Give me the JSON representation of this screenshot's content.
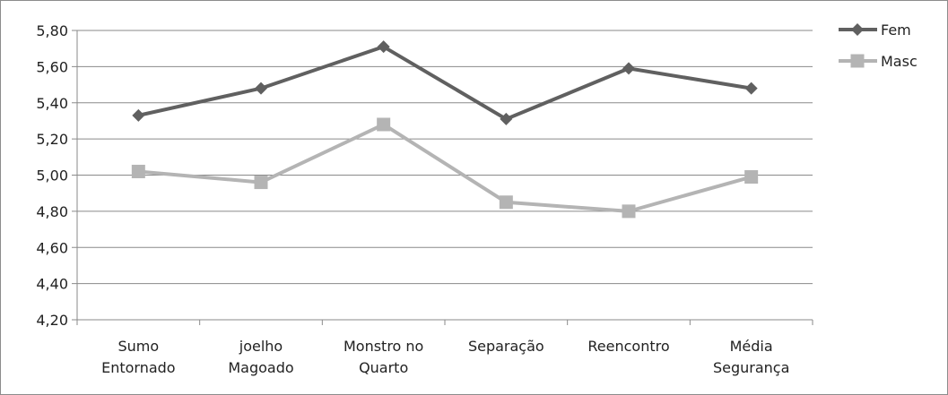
{
  "chart_data": {
    "type": "line",
    "categories": [
      [
        "Sumo",
        "Entornado"
      ],
      [
        "joelho",
        "Magoado"
      ],
      [
        "Monstro no",
        "Quarto"
      ],
      [
        "Separação"
      ],
      [
        "Reencontro"
      ],
      [
        "Média",
        "Segurança"
      ]
    ],
    "ylim": [
      4.2,
      5.8
    ],
    "yticks": [
      "4,20",
      "4,40",
      "4,60",
      "4,80",
      "5,00",
      "5,20",
      "5,40",
      "5,60",
      "5,80"
    ],
    "grid": true,
    "legend_position": "top-right",
    "series": [
      {
        "name": "Fem",
        "color": "#606060",
        "marker": "diamond",
        "values": [
          5.33,
          5.48,
          5.71,
          5.31,
          5.59,
          5.48
        ]
      },
      {
        "name": "Masc",
        "color": "#b4b4b4",
        "marker": "square",
        "values": [
          5.02,
          4.96,
          5.28,
          4.85,
          4.8,
          4.99
        ]
      }
    ]
  }
}
